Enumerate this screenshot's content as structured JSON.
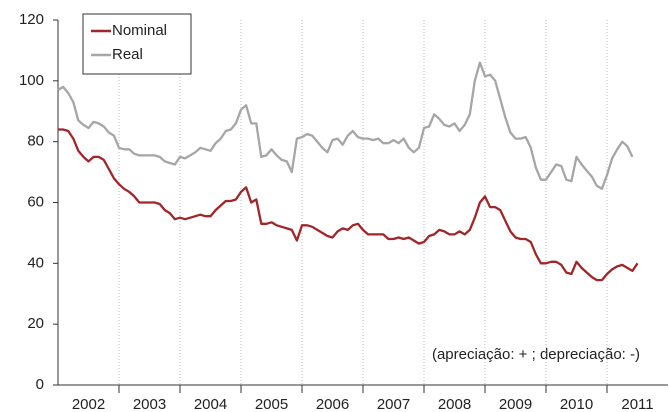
{
  "chart_data": {
    "type": "line",
    "annotation": "(apreciação: + ; depreciação: -)",
    "categories": [
      "2002",
      "2003",
      "2004",
      "2005",
      "2006",
      "2007",
      "2008",
      "2009",
      "2010",
      "2011"
    ],
    "x": [
      2002.0,
      2002.083,
      2002.167,
      2002.25,
      2002.333,
      2002.417,
      2002.5,
      2002.583,
      2002.667,
      2002.75,
      2002.833,
      2002.917,
      2003.0,
      2003.083,
      2003.167,
      2003.25,
      2003.333,
      2003.417,
      2003.5,
      2003.583,
      2003.667,
      2003.75,
      2003.833,
      2003.917,
      2004.0,
      2004.083,
      2004.167,
      2004.25,
      2004.333,
      2004.417,
      2004.5,
      2004.583,
      2004.667,
      2004.75,
      2004.833,
      2004.917,
      2005.0,
      2005.083,
      2005.167,
      2005.25,
      2005.333,
      2005.417,
      2005.5,
      2005.583,
      2005.667,
      2005.75,
      2005.833,
      2005.917,
      2006.0,
      2006.083,
      2006.167,
      2006.25,
      2006.333,
      2006.417,
      2006.5,
      2006.583,
      2006.667,
      2006.75,
      2006.833,
      2006.917,
      2007.0,
      2007.083,
      2007.167,
      2007.25,
      2007.333,
      2007.417,
      2007.5,
      2007.583,
      2007.667,
      2007.75,
      2007.833,
      2007.917,
      2008.0,
      2008.083,
      2008.167,
      2008.25,
      2008.333,
      2008.417,
      2008.5,
      2008.583,
      2008.667,
      2008.75,
      2008.833,
      2008.917,
      2009.0,
      2009.083,
      2009.167,
      2009.25,
      2009.333,
      2009.417,
      2009.5,
      2009.583,
      2009.667,
      2009.75,
      2009.833,
      2009.917,
      2010.0,
      2010.083,
      2010.167,
      2010.25,
      2010.333,
      2010.417,
      2010.5,
      2010.583,
      2010.667,
      2010.75,
      2010.833,
      2010.917,
      2011.0,
      2011.083,
      2011.167,
      2011.25,
      2011.333,
      2011.417,
      2011.5
    ],
    "series": [
      {
        "name": "Nominal",
        "color": "#a0262a",
        "values": [
          84,
          84,
          83.5,
          81,
          77,
          75,
          73.5,
          75,
          75,
          74,
          71,
          68,
          66,
          64.5,
          63.5,
          62,
          60,
          60,
          60,
          60,
          59.5,
          57.5,
          56.5,
          54.5,
          55,
          54.5,
          55,
          55.5,
          56,
          55.5,
          55.5,
          57.5,
          59,
          60.5,
          60.5,
          61,
          63.5,
          65,
          60,
          61,
          53,
          53,
          53.5,
          52.5,
          52,
          51.5,
          51,
          47.5,
          52.5,
          52.5,
          52,
          51,
          50,
          49,
          48.5,
          50.5,
          51.5,
          51,
          52.5,
          53,
          51,
          49.5,
          49.5,
          49.5,
          49.5,
          48,
          48,
          48.5,
          48,
          48.5,
          47.5,
          46.5,
          47,
          49,
          49.5,
          51,
          50.5,
          49.5,
          49.5,
          50.5,
          49.5,
          51,
          55,
          60,
          62,
          58.5,
          58.5,
          57.5,
          54,
          50.5,
          48.5,
          48,
          48,
          47,
          43,
          40,
          40,
          40.5,
          40.5,
          39.5,
          37,
          36.5,
          40.5,
          38.5,
          37,
          35.5,
          34.5,
          34.5,
          36.5,
          38,
          39,
          39.5,
          38.5,
          37.5,
          40
        ]
      },
      {
        "name": "Real",
        "color": "#a6a6a6",
        "values": [
          97,
          98,
          96,
          93,
          87,
          85.5,
          84.5,
          86.5,
          86,
          85,
          83,
          82,
          78,
          77.5,
          77.5,
          76,
          75.5,
          75.5,
          75.5,
          75.5,
          75,
          73.5,
          73,
          72.5,
          75,
          74.5,
          75.5,
          76.5,
          78,
          77.5,
          77,
          79.5,
          81,
          83.5,
          84,
          86,
          90.5,
          92,
          86,
          86,
          75,
          75.5,
          77.5,
          75.5,
          74,
          73.5,
          70,
          81,
          81.5,
          82.5,
          82,
          80,
          78,
          76.5,
          80.5,
          81,
          79,
          82,
          83.5,
          81.5,
          81,
          81,
          80.5,
          81,
          79.5,
          79.5,
          80.5,
          79.5,
          81,
          78,
          76.5,
          78,
          84.5,
          85,
          89,
          87.5,
          85.5,
          85,
          86,
          83.5,
          85.5,
          89,
          100,
          106,
          101.5,
          102,
          100,
          94,
          88,
          83,
          81,
          81,
          81.5,
          78,
          71.5,
          67.5,
          67.5,
          70,
          72.5,
          72,
          67.5,
          67,
          75,
          72.5,
          70.5,
          68.5,
          65.5,
          64.5,
          69,
          74.5,
          77.5,
          80,
          78.5,
          75,
          null
        ]
      }
    ],
    "xlim": [
      2002,
      2012
    ],
    "xticks": [
      2003,
      2004,
      2005,
      2006,
      2007,
      2008,
      2009,
      2010,
      2011
    ],
    "ylim": [
      0,
      120
    ],
    "yticks": [
      0,
      20,
      40,
      60,
      80,
      100,
      120
    ],
    "grid": true,
    "legend": "upper left"
  }
}
